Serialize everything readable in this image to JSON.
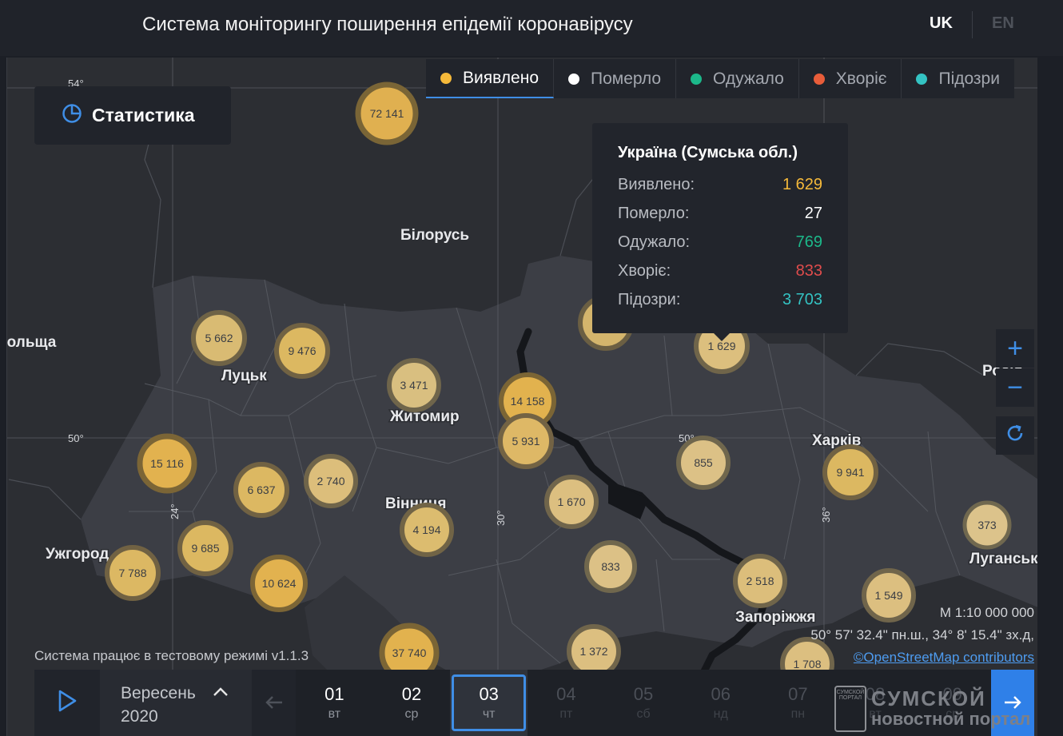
{
  "header": {
    "title": "Система моніторингу поширення епідемії коронавірусу",
    "lang_uk": "UK",
    "lang_en": "EN"
  },
  "stats_button": {
    "label": "Статистика",
    "icon": "pie-chart-icon"
  },
  "tabs": [
    {
      "label": "Виявлено",
      "color": "#f5b93a",
      "active": true
    },
    {
      "label": "Померло",
      "color": "#ffffff",
      "active": false
    },
    {
      "label": "Одужало",
      "color": "#1cb88a",
      "active": false
    },
    {
      "label": "Хворіє",
      "color": "#e85d3a",
      "active": false
    },
    {
      "label": "Підозри",
      "color": "#34c3c3",
      "active": false
    }
  ],
  "tooltip": {
    "title": "Україна (Сумська обл.)",
    "rows": [
      {
        "label": "Виявлено:",
        "value": "1 629",
        "color": "#f5b93a"
      },
      {
        "label": "Померло:",
        "value": "27",
        "color": "#ffffff"
      },
      {
        "label": "Одужало:",
        "value": "769",
        "color": "#1cb88a"
      },
      {
        "label": "Хворіє:",
        "value": "833",
        "color": "#e04c4c"
      },
      {
        "label": "Підозри:",
        "value": "3 703",
        "color": "#34c3c3"
      }
    ]
  },
  "map": {
    "grid_labels": {
      "lat54": "54°",
      "lat50a": "50°",
      "lat50b": "50°",
      "lon24": "24°",
      "lon30": "30°",
      "lon36": "36°"
    },
    "place_labels": {
      "belarus": "Білорусь",
      "poland": "Польща",
      "russia": "Росія",
      "lutsk": "Луцьк",
      "zhytomyr": "Житомир",
      "vinnytsia": "Вінниця",
      "uzhhorod": "Ужгород",
      "kharkiv": "Харків",
      "zaporizhzhia": "Запоріжжя",
      "luhansk": "Луганськ"
    },
    "clusters": [
      {
        "label": "72 141"
      },
      {
        "label": "5 662"
      },
      {
        "label": "9 476"
      },
      {
        "label": "3 471"
      },
      {
        "label": "14 158"
      },
      {
        "label": "5 931"
      },
      {
        "label": "1 629"
      },
      {
        "label": "15 116"
      },
      {
        "label": "6 637"
      },
      {
        "label": "2 740"
      },
      {
        "label": "4 194"
      },
      {
        "label": "1 670"
      },
      {
        "label": "855"
      },
      {
        "label": "9 941"
      },
      {
        "label": "373"
      },
      {
        "label": "9 685"
      },
      {
        "label": "7 788"
      },
      {
        "label": "10 624"
      },
      {
        "label": "833"
      },
      {
        "label": "2 518"
      },
      {
        "label": "1 549"
      },
      {
        "label": "37 740"
      },
      {
        "label": "1 372"
      },
      {
        "label": "1 708"
      }
    ]
  },
  "controls": {
    "zoom_in": "+",
    "zoom_out": "−",
    "reset_icon": "refresh-icon"
  },
  "scale": {
    "text": "М 1:10 000 000",
    "coords": "50° 57' 32.4\" пн.ш., 34° 8' 15.4\" зх.д,",
    "attribution": "©OpenStreetMap contributors"
  },
  "test_mode": "Система працює в тестовому режимі v1.1.3",
  "timeline": {
    "month": "Вересень",
    "year": "2020",
    "days": [
      {
        "num": "01",
        "wd": "вт",
        "state": "normal"
      },
      {
        "num": "02",
        "wd": "ср",
        "state": "normal"
      },
      {
        "num": "03",
        "wd": "чт",
        "state": "selected"
      },
      {
        "num": "04",
        "wd": "пт",
        "state": "dim"
      },
      {
        "num": "05",
        "wd": "сб",
        "state": "dim"
      },
      {
        "num": "06",
        "wd": "нд",
        "state": "dim"
      },
      {
        "num": "07",
        "wd": "пн",
        "state": "dim"
      },
      {
        "num": "08",
        "wd": "вт",
        "state": "dim"
      },
      {
        "num": "09",
        "wd": "ср",
        "state": "dim"
      }
    ]
  },
  "watermark": {
    "logo": "СУМСКОЙ ПОРТАЛ",
    "line1": "СУМСКОЙ",
    "line2": "новостной портал"
  }
}
